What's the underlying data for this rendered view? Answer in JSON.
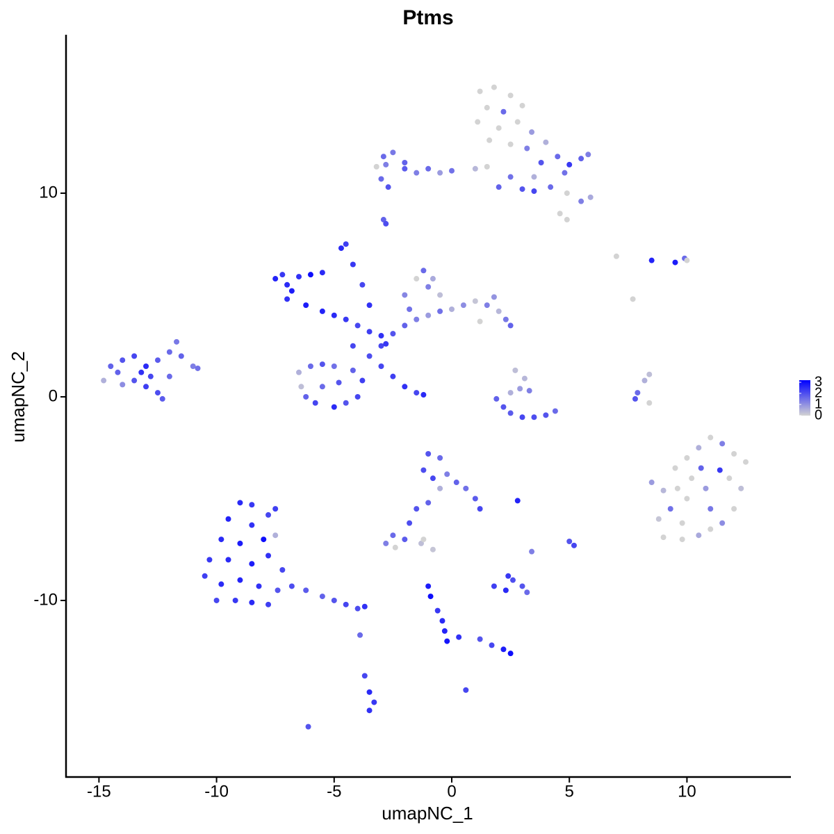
{
  "chart_data": {
    "type": "scatter",
    "title": "Ptms",
    "x_label": "umapNC_1",
    "y_label": "umapNC_2",
    "xlim": [
      -16.4,
      14.42
    ],
    "ylim": [
      -18.67,
      17.78
    ],
    "xticks": [
      -15,
      -10,
      -5,
      0,
      5,
      10
    ],
    "yticks": [
      -10,
      0,
      10
    ],
    "color_low": "#d3d3d3",
    "color_high": "#0000ff",
    "color_lim": [
      0,
      3
    ],
    "color_ticks": [
      0,
      1,
      2,
      3
    ],
    "x": [
      1.2,
      1.8,
      2.5,
      1.5,
      2.2,
      3,
      1.1,
      2,
      2.8,
      3.4,
      1.6,
      2.5,
      3.2,
      4,
      3.8,
      4.5,
      5,
      5.5,
      4.8,
      5.8,
      3.5,
      4.2,
      4.9,
      5.5,
      5.9,
      4.6,
      4.9,
      3.5,
      2.5,
      1.5,
      1,
      0,
      -1,
      -2,
      -2.5,
      -2.8,
      -3.2,
      -2.9,
      -2,
      -1.5,
      -0.5,
      2,
      3,
      -3,
      -2.7,
      -2.9,
      -2.8,
      -7.5,
      -7,
      -7.2,
      -6.8,
      -6.5,
      -6,
      -5.5,
      -7,
      -6.2,
      -5.5,
      -5,
      -4.5,
      -4,
      -3.5,
      -3,
      -2.5,
      -3,
      -2.8,
      -4.7,
      -4.5,
      -4.2,
      -3.8,
      -3.5,
      -4.2,
      -3.5,
      -3,
      -2.5,
      -2,
      -1.5,
      -1.2,
      -6.5,
      -6,
      -5.5,
      -5,
      -6.2,
      -5.8,
      -5,
      -4.5,
      -4,
      -3.8,
      -4.2,
      -6.4,
      -5.5,
      -4.8,
      -2,
      -1.5,
      -1,
      -0.5,
      0,
      0.5,
      1,
      1.5,
      2,
      2.3,
      2.5,
      1.8,
      1.2,
      -1.2,
      -1.5,
      -1,
      -0.5,
      -0.8,
      -2,
      -1.8,
      -14.8,
      -14.5,
      -14,
      -13.5,
      -13,
      -12.5,
      -12,
      -11.7,
      -11.5,
      -11,
      -10.8,
      -14,
      -13.5,
      -13,
      -12.5,
      -12.3,
      -13.2,
      -12.8,
      -12,
      -14.2,
      1.9,
      2.2,
      2.5,
      3,
      3.5,
      4,
      4.4,
      2.7,
      3.1,
      2.9,
      3.3,
      2.5,
      7,
      8.5,
      9.5,
      9.9,
      10,
      7.7,
      8.4,
      8.2,
      7.9,
      7.8,
      8.4,
      8.5,
      9,
      9.5,
      10,
      10.5,
      11,
      11.5,
      12,
      12.5,
      12.3,
      12,
      11.5,
      11,
      10.5,
      9.8,
      9,
      8.8,
      9.3,
      10,
      10.8,
      11.4,
      10.2,
      11,
      9.8,
      11.8,
      10.6,
      9.6,
      -1,
      -0.5,
      -1.2,
      -0.8,
      -0.2,
      0.2,
      0.6,
      1,
      1.2,
      -0.5,
      -1,
      -1.5,
      -1.8,
      -2.5,
      -2.8,
      -2,
      -2.4,
      -1.3,
      -0.8,
      -9,
      -8.5,
      -9.5,
      -8.5,
      -7.8,
      -7.5,
      -9.8,
      -9,
      -8,
      -7.5,
      -10.3,
      -9.5,
      -8.5,
      -7.8,
      -7.2,
      -10.5,
      -9.8,
      -9,
      -8.2,
      -7.4,
      -10,
      -9.2,
      -8.5,
      -7.8,
      -6.8,
      -6.2,
      -5.5,
      -5,
      -4.5,
      -4,
      -3.7,
      -3.9,
      -3.7,
      -3.5,
      -3.3,
      -3.5,
      -6.1,
      -1,
      -0.9,
      -0.6,
      -0.4,
      -0.3,
      -0.2,
      0.3,
      1.2,
      1.7,
      2.2,
      2.5,
      0.6,
      1.8,
      2.3,
      2.6,
      3,
      2.4,
      3.2,
      2.8,
      3.4,
      5,
      5.2,
      -1.2
    ],
    "values": [
      15,
      15.2,
      14.8,
      14.2,
      14,
      14.3,
      13.5,
      13.2,
      13.5,
      13,
      12.6,
      12.4,
      12.2,
      12.5,
      11.5,
      11.8,
      11.4,
      11.7,
      11,
      11.9,
      10.8,
      10.3,
      10,
      9.6,
      9.8,
      9,
      8.7,
      10.1,
      10.8,
      11.3,
      11.2,
      11.1,
      11.2,
      11.5,
      12,
      11.4,
      11.3,
      11.8,
      11.2,
      11,
      11,
      10.3,
      10.2,
      10.7,
      10.3,
      8.7,
      8.5,
      5.8,
      5.5,
      6,
      5.2,
      5.9,
      6,
      6.1,
      4.8,
      4.5,
      4.2,
      4,
      3.8,
      3.5,
      3.2,
      3,
      3.1,
      2.5,
      2.6,
      7.3,
      7.5,
      6.5,
      5.5,
      4.5,
      2.5,
      2,
      1.5,
      1,
      0.5,
      0.2,
      0.1,
      1.2,
      1.5,
      1.6,
      1.5,
      0,
      -0.3,
      -0.5,
      -0.3,
      0,
      0.8,
      1.3,
      0.5,
      0.5,
      0.7,
      3.5,
      3.8,
      4,
      4.2,
      4.3,
      4.5,
      4.7,
      4.5,
      4.2,
      3.8,
      3.5,
      4.9,
      3.7,
      6.2,
      5.8,
      5.4,
      5,
      5.8,
      5,
      4.3,
      0.8,
      1.5,
      1.8,
      2,
      1.5,
      1.8,
      2.2,
      2.7,
      2,
      1.5,
      1.4,
      0.6,
      0.8,
      0.5,
      0.2,
      -0.1,
      1.2,
      1,
      1,
      1.2,
      -0.1,
      -0.5,
      -0.8,
      -1,
      -1,
      -0.9,
      -0.7,
      1.3,
      0.9,
      0.4,
      0.3,
      0.2,
      6.9,
      6.7,
      6.6,
      6.8,
      6.7,
      4.8,
      1.1,
      0.8,
      0.2,
      -0.1,
      -0.3,
      -4.2,
      -4.6,
      -3.5,
      -3,
      -2.5,
      -2,
      -2.3,
      -2.8,
      -3.2,
      -4.5,
      -5.5,
      -6.2,
      -6.5,
      -6.8,
      -7,
      -6.9,
      -6,
      -5.5,
      -5,
      -4.5,
      -3.6,
      -4,
      -5.5,
      -6.2,
      -4,
      -3.5,
      -4.5,
      -2.8,
      -3,
      -3.6,
      -4,
      -3.8,
      -4.2,
      -4.5,
      -5,
      -5.5,
      -4.5,
      -5.2,
      -5.5,
      -6.2,
      -6.8,
      -7.2,
      -7,
      -7.4,
      -7.2,
      -7.5,
      -5.2,
      -5.3,
      -6,
      -6.3,
      -5.8,
      -5.5,
      -7,
      -7.2,
      -7,
      -6.8,
      -8,
      -8,
      -8.2,
      -7.8,
      -8.5,
      -8.8,
      -9.2,
      -9,
      -9.3,
      -9.5,
      -10,
      -10,
      -10.1,
      -10.2,
      -9.3,
      -9.5,
      -9.8,
      -10,
      -10.2,
      -10.4,
      -10.3,
      -11.7,
      -13.7,
      -14.5,
      -15,
      -15.4,
      -16.2,
      -9.3,
      -9.8,
      -10.5,
      -11,
      -11.5,
      -12,
      -11.8,
      -11.9,
      -12.2,
      -12.4,
      -12.6,
      -14.4,
      -9.3,
      -9.5,
      -9,
      -9.3,
      -8.8,
      -9.6,
      -5.1,
      -7.6,
      -7.1,
      -7.3,
      -7
    ],
    "expression": [
      0,
      0,
      0,
      0,
      1.5,
      0,
      0,
      0,
      0,
      0.8,
      0,
      0,
      1.2,
      0.5,
      1.8,
      1.5,
      2.2,
      1.6,
      1.4,
      1.2,
      0.5,
      1.5,
      0,
      1.2,
      0.6,
      0,
      0,
      2,
      1.4,
      0,
      0.4,
      1.4,
      1.5,
      1.6,
      1.3,
      1.2,
      0,
      1.5,
      1.7,
      1.2,
      0.8,
      1.6,
      1.8,
      1.5,
      1.8,
      1.6,
      1.9,
      2.5,
      2.4,
      2.2,
      2.6,
      2.3,
      2.8,
      2.4,
      2.3,
      2.6,
      2.5,
      2.4,
      2.2,
      2,
      2.1,
      2.3,
      1.8,
      2,
      2.2,
      2.4,
      2.1,
      2.2,
      2,
      2.3,
      2,
      1.9,
      2,
      2.1,
      2.3,
      2,
      2.4,
      0.5,
      1.5,
      1.8,
      1.4,
      1.6,
      2,
      2.4,
      1.8,
      2,
      2.1,
      1.6,
      0.3,
      1.5,
      1.8,
      1.6,
      1.2,
      0.8,
      1.4,
      0.5,
      1,
      0.2,
      1.2,
      0.4,
      1.3,
      1.6,
      0.9,
      0,
      1.5,
      0,
      1.2,
      0.3,
      0.6,
      1.1,
      1.4,
      0.5,
      1.6,
      1.8,
      2,
      2.4,
      1.7,
      1.5,
      1.3,
      1.6,
      1.2,
      1.4,
      1,
      1.8,
      2.1,
      1.9,
      1.7,
      2.3,
      2,
      1.5,
      1.6,
      1.6,
      1.8,
      1.7,
      2,
      1.9,
      1.8,
      1.5,
      0.3,
      0.4,
      0.8,
      1.2,
      0.5,
      0,
      2.5,
      2.6,
      1.5,
      0,
      0,
      0.3,
      0.5,
      1.5,
      1.8,
      0,
      0.8,
      0.4,
      0,
      0,
      0.5,
      0,
      1.2,
      0,
      0,
      0.3,
      0,
      1,
      0,
      0.6,
      0,
      0,
      0.2,
      1.4,
      0,
      0.8,
      2.2,
      0,
      1.3,
      0,
      0,
      1.6,
      0,
      1.8,
      1.5,
      1.9,
      2,
      1.2,
      1.6,
      1.4,
      1.7,
      2,
      0.5,
      1.6,
      1.8,
      1.9,
      1.5,
      1.2,
      1.7,
      0,
      0.3,
      0.2,
      2.4,
      2.2,
      2.5,
      2.3,
      2,
      2.1,
      2.4,
      2.6,
      2.8,
      0.5,
      2.2,
      2.4,
      2.6,
      2.3,
      2,
      2.1,
      2.4,
      2.5,
      2.3,
      1.8,
      2,
      2.2,
      2.4,
      2.1,
      1.9,
      1.7,
      1.6,
      1.8,
      2,
      1.9,
      2.3,
      1.5,
      2,
      2.4,
      2.2,
      2.3,
      1.8,
      2.6,
      2.8,
      2.2,
      2.4,
      2.5,
      2.7,
      2.3,
      1.8,
      2,
      2.6,
      2.8,
      2,
      2.1,
      2.4,
      1.9,
      1.8,
      2.2,
      1.5,
      2.5,
      1.2,
      1.8,
      2,
      0
    ]
  }
}
